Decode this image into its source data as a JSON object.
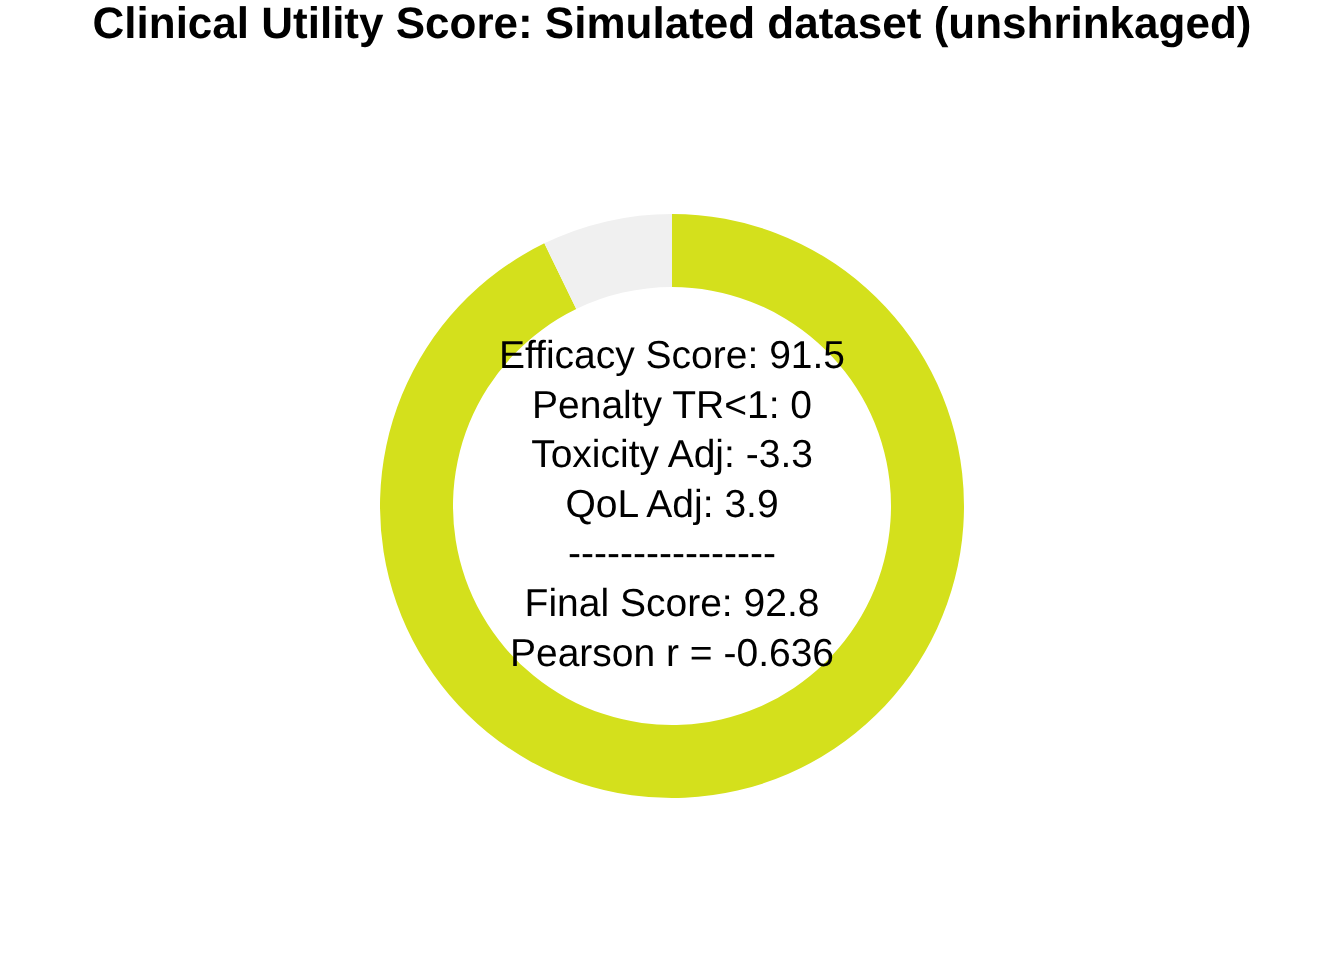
{
  "chart_data": {
    "type": "donut",
    "title": "Clinical Utility Score: Simulated dataset (unshrinkaged)",
    "categories": [
      null,
      null
    ],
    "values": [
      92.8,
      7.2
    ],
    "colors": [
      "#d4e01c",
      "#f0f0f0"
    ],
    "annotations": [
      "Efficacy Score: 91.5",
      "Penalty TR<1: 0",
      "Toxicity Adj: -3.3",
      "QoL Adj: 3.9",
      "----------------",
      "Final Score: 92.8",
      "Pearson r = -0.636"
    ]
  }
}
